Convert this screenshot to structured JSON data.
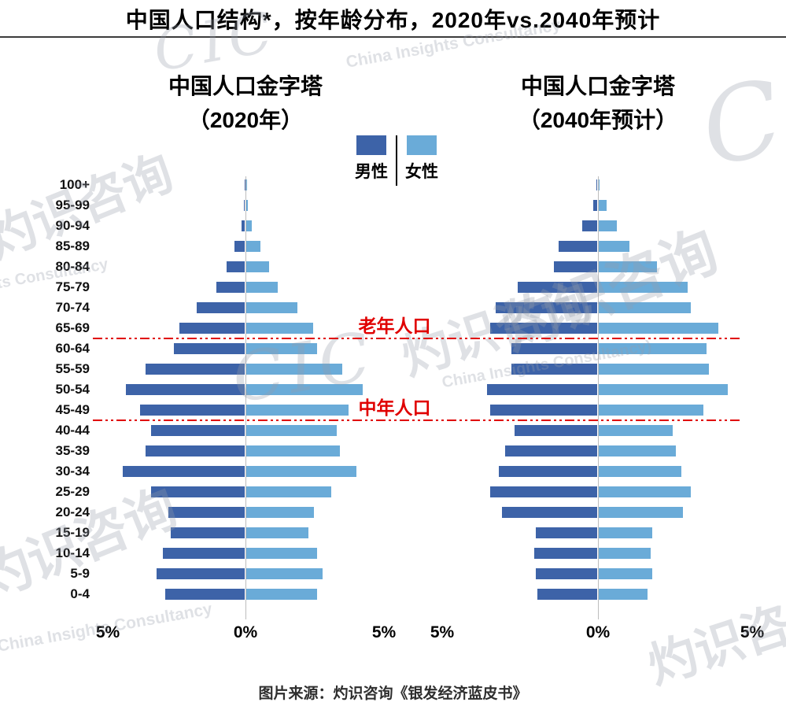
{
  "title": "中国人口结构*，按年龄分布，2020年vs.2040年预计",
  "source_caption": "图片来源：灼识咨询《银发经济蓝皮书》",
  "watermarks": [
    "CIC",
    "China Insights Consultancy",
    "灼识咨询",
    "ts Consultancy",
    "CIC",
    "灼识咨询",
    "China Insights Consultancy)",
    "灼识咨询",
    "C",
    "灼识咨询",
    "China Insights Consultancy",
    "灼识咨询"
  ],
  "chart_data": {
    "type": "bar",
    "subtype": "population-pyramid-pair",
    "unit": "percent of total population",
    "xmax": 5,
    "x_ticks": [
      "5%",
      "0%",
      "5%"
    ],
    "legend": {
      "male_label": "男性",
      "female_label": "女性"
    },
    "colors": {
      "male": "#3D63A8",
      "female": "#6AABD8",
      "annotation": "#E00000"
    },
    "age_groups": [
      "100+",
      "95-99",
      "90-94",
      "85-89",
      "80-84",
      "75-79",
      "70-74",
      "65-69",
      "60-64",
      "55-59",
      "50-54",
      "45-49",
      "40-44",
      "35-39",
      "30-34",
      "25-29",
      "20-24",
      "15-19",
      "10-14",
      "5-9",
      "0-4"
    ],
    "annotations": [
      {
        "label": "老年人口",
        "line_below_group": "65-69"
      },
      {
        "label": "中年人口",
        "line_below_group": "45-49"
      }
    ],
    "pyramids": [
      {
        "title": "中国人口金字塔",
        "subtitle": "（2020年）",
        "male": [
          0.01,
          0.03,
          0.12,
          0.35,
          0.65,
          1.0,
          1.7,
          2.3,
          2.5,
          3.5,
          4.2,
          3.7,
          3.3,
          3.5,
          4.3,
          3.3,
          2.7,
          2.6,
          2.9,
          3.1,
          2.8
        ],
        "female": [
          0.01,
          0.06,
          0.2,
          0.5,
          0.8,
          1.1,
          1.8,
          2.35,
          2.5,
          3.4,
          4.1,
          3.6,
          3.2,
          3.3,
          3.9,
          3.0,
          2.4,
          2.2,
          2.5,
          2.7,
          2.5
        ]
      },
      {
        "title": "中国人口金字塔",
        "subtitle": "（2040年预计）",
        "male": [
          0.03,
          0.12,
          0.5,
          1.25,
          1.4,
          2.6,
          3.3,
          3.5,
          2.8,
          2.8,
          3.6,
          3.5,
          2.7,
          3.0,
          3.2,
          3.5,
          3.1,
          2.0,
          2.05,
          2.0,
          1.95
        ],
        "female": [
          0.03,
          0.25,
          0.6,
          1.0,
          1.9,
          2.9,
          3.0,
          3.9,
          3.5,
          3.6,
          4.2,
          3.4,
          2.4,
          2.5,
          2.7,
          3.0,
          2.75,
          1.75,
          1.7,
          1.75,
          1.6
        ]
      }
    ]
  }
}
